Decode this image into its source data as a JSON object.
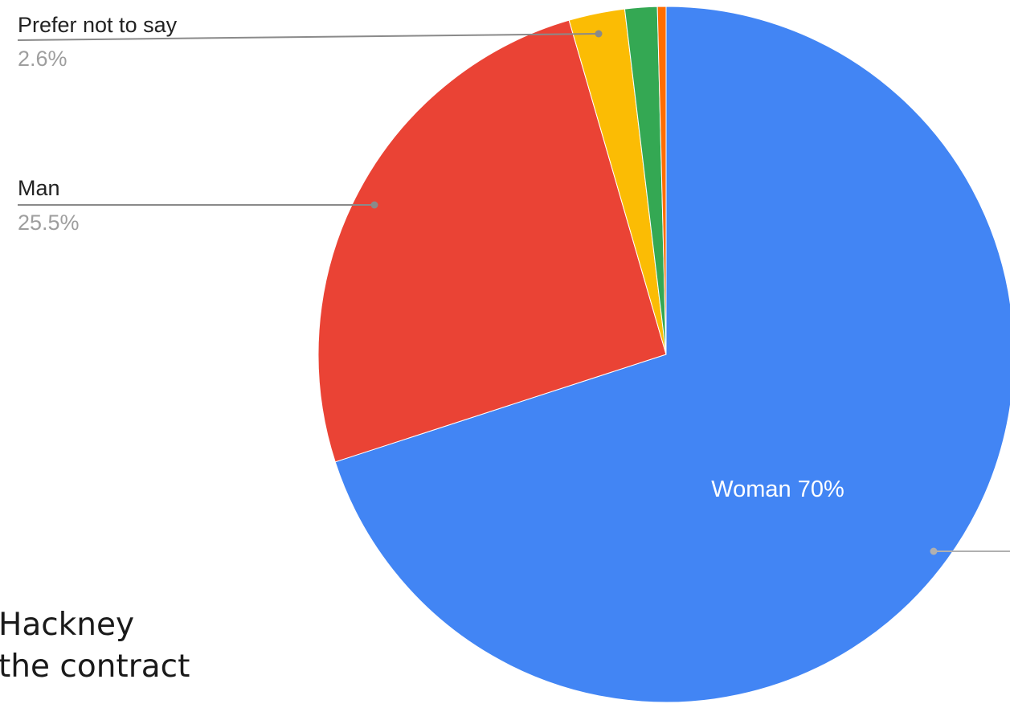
{
  "chart_data": {
    "type": "pie",
    "title": "",
    "start_angle_deg": 0,
    "direction": "clockwise",
    "slices": [
      {
        "label": "Woman",
        "value": 70.0,
        "display": "Woman 70%",
        "color": "#4285f4"
      },
      {
        "label": "Man",
        "value": 25.5,
        "display": "25.5%",
        "color": "#ea4335"
      },
      {
        "label": "Prefer not to say",
        "value": 2.6,
        "display": "2.6%",
        "color": "#fbbc04"
      },
      {
        "label": "",
        "value": 1.5,
        "display": "",
        "color": "#34a853"
      },
      {
        "label": "",
        "value": 0.4,
        "display": "",
        "color": "#ff6d01"
      }
    ]
  },
  "background_text": {
    "line1": "Hackney",
    "line2": "the contract"
  }
}
